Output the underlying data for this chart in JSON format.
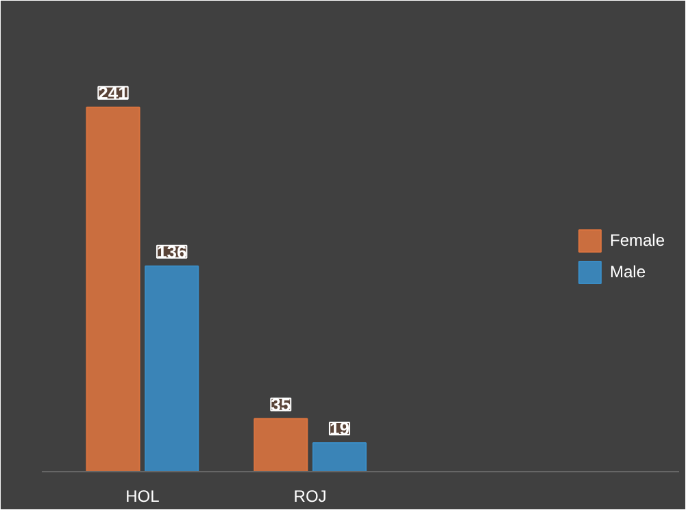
{
  "chart_data": {
    "type": "bar",
    "categories": [
      "HOL",
      "ROJ"
    ],
    "series": [
      {
        "name": "Female",
        "color": "#d9733f",
        "values": [
          241,
          35
        ]
      },
      {
        "name": "Male",
        "color": "#3a8cc4",
        "values": [
          136,
          19
        ]
      }
    ],
    "data_labels": true,
    "legend": "right",
    "grid": false
  }
}
